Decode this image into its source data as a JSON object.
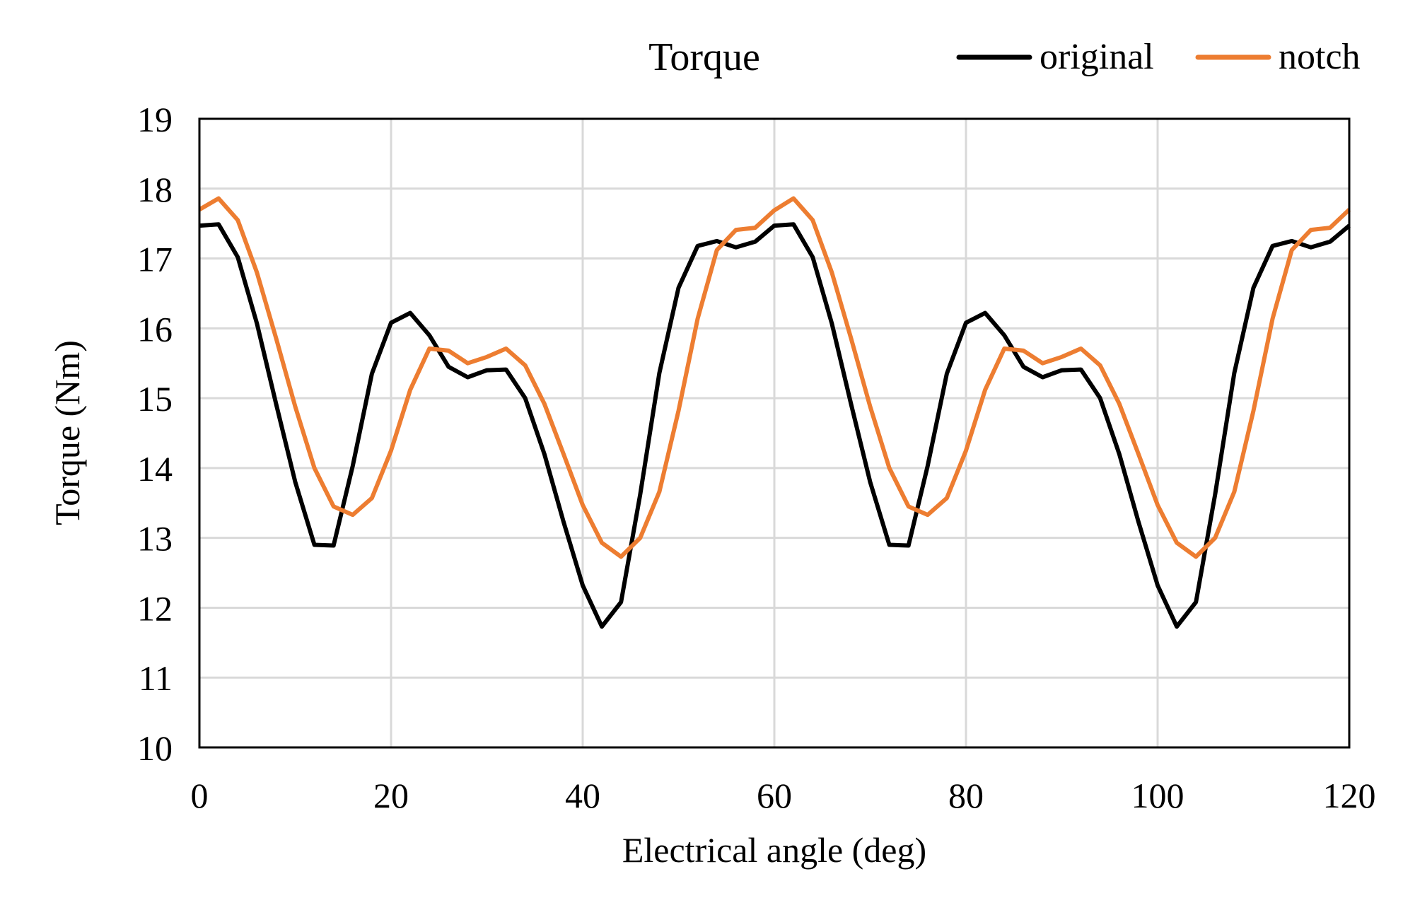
{
  "chart_data": {
    "type": "line",
    "title": "Torque",
    "xlabel": "Electrical angle (deg)",
    "ylabel": "Torque (Nm)",
    "xlim": [
      0,
      120
    ],
    "ylim": [
      10,
      19
    ],
    "xticks": [
      0,
      20,
      40,
      60,
      80,
      100,
      120
    ],
    "yticks": [
      10,
      11,
      12,
      13,
      14,
      15,
      16,
      17,
      18,
      19
    ],
    "xtick_labels": [
      "0",
      "20",
      "40",
      "60",
      "80",
      "100",
      "120"
    ],
    "ytick_labels": [
      "10",
      "11",
      "12",
      "13",
      "14",
      "15",
      "16",
      "17",
      "18",
      "19"
    ],
    "grid": true,
    "legend_position": "top-right",
    "x": [
      0,
      2,
      4,
      6,
      8,
      10,
      12,
      14,
      16,
      18,
      20,
      22,
      24,
      26,
      28,
      30,
      32,
      34,
      36,
      38,
      40,
      42,
      44,
      46,
      48,
      50,
      52,
      54,
      56,
      58,
      60,
      62,
      64,
      66,
      68,
      70,
      72,
      74,
      76,
      78,
      80,
      82,
      84,
      86,
      88,
      90,
      92,
      94,
      96,
      98,
      100,
      102,
      104,
      106,
      108,
      110,
      112,
      114,
      116,
      118,
      120
    ],
    "series": [
      {
        "name": "original",
        "color": "#000000",
        "values": [
          17.47,
          17.49,
          17.02,
          16.07,
          14.92,
          13.8,
          12.9,
          12.89,
          14.03,
          15.35,
          16.08,
          16.22,
          15.9,
          15.45,
          15.3,
          15.4,
          15.41,
          15.0,
          14.2,
          13.23,
          12.32,
          11.73,
          12.08,
          13.62,
          15.36,
          16.58,
          17.18,
          17.25,
          17.16,
          17.24,
          17.47,
          17.49,
          17.02,
          16.07,
          14.92,
          13.8,
          12.9,
          12.89,
          14.03,
          15.35,
          16.08,
          16.22,
          15.9,
          15.45,
          15.3,
          15.4,
          15.41,
          15.0,
          14.2,
          13.23,
          12.32,
          11.73,
          12.08,
          13.62,
          15.36,
          16.58,
          17.18,
          17.25,
          17.16,
          17.24,
          17.47
        ]
      },
      {
        "name": "notch",
        "color": "#ED7D31",
        "values": [
          17.7,
          17.86,
          17.55,
          16.8,
          15.86,
          14.88,
          14.0,
          13.45,
          13.33,
          13.57,
          14.25,
          15.12,
          15.71,
          15.68,
          15.5,
          15.59,
          15.71,
          15.47,
          14.92,
          14.2,
          13.47,
          12.93,
          12.73,
          13.0,
          13.66,
          14.82,
          16.14,
          17.12,
          17.41,
          17.44,
          17.69,
          17.86,
          17.55,
          16.8,
          15.86,
          14.88,
          14.0,
          13.45,
          13.33,
          13.57,
          14.25,
          15.12,
          15.71,
          15.68,
          15.5,
          15.59,
          15.71,
          15.47,
          14.92,
          14.2,
          13.47,
          12.93,
          12.73,
          13.0,
          13.66,
          14.82,
          16.14,
          17.12,
          17.41,
          17.44,
          17.7
        ]
      }
    ]
  }
}
